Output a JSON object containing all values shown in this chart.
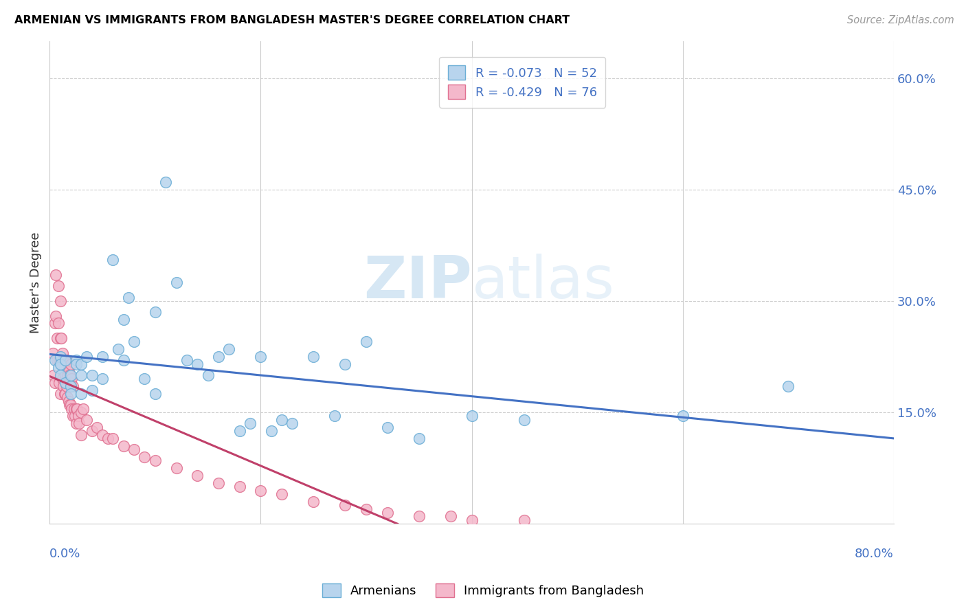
{
  "title": "ARMENIAN VS IMMIGRANTS FROM BANGLADESH MASTER'S DEGREE CORRELATION CHART",
  "source": "Source: ZipAtlas.com",
  "ylabel": "Master's Degree",
  "right_yticks": [
    "15.0%",
    "30.0%",
    "45.0%",
    "60.0%"
  ],
  "right_ytick_vals": [
    0.15,
    0.3,
    0.45,
    0.6
  ],
  "xlim": [
    0.0,
    0.8
  ],
  "ylim": [
    0.0,
    0.65
  ],
  "color_armenian_fill": "#b8d4ed",
  "color_armenian_edge": "#6baed6",
  "color_bangladesh_fill": "#f4b8cb",
  "color_bangladesh_edge": "#e07090",
  "color_line_armenian": "#4472c4",
  "color_line_bangladesh": "#c0406a",
  "color_text_blue": "#4472c4",
  "color_grid": "#cccccc",
  "watermark_color": "#cce0f0",
  "legend_labels": [
    "Armenians",
    "Immigrants from Bangladesh"
  ],
  "armenian_x": [
    0.005,
    0.008,
    0.01,
    0.01,
    0.01,
    0.015,
    0.015,
    0.02,
    0.02,
    0.02,
    0.025,
    0.025,
    0.03,
    0.03,
    0.03,
    0.035,
    0.04,
    0.04,
    0.05,
    0.05,
    0.06,
    0.065,
    0.07,
    0.07,
    0.075,
    0.08,
    0.09,
    0.1,
    0.1,
    0.11,
    0.12,
    0.13,
    0.14,
    0.15,
    0.16,
    0.17,
    0.18,
    0.19,
    0.2,
    0.21,
    0.22,
    0.23,
    0.25,
    0.27,
    0.28,
    0.3,
    0.32,
    0.35,
    0.4,
    0.45,
    0.6,
    0.7
  ],
  "armenian_y": [
    0.22,
    0.21,
    0.225,
    0.215,
    0.2,
    0.22,
    0.19,
    0.2,
    0.185,
    0.175,
    0.22,
    0.215,
    0.215,
    0.2,
    0.175,
    0.225,
    0.2,
    0.18,
    0.225,
    0.195,
    0.355,
    0.235,
    0.275,
    0.22,
    0.305,
    0.245,
    0.195,
    0.285,
    0.175,
    0.46,
    0.325,
    0.22,
    0.215,
    0.2,
    0.225,
    0.235,
    0.125,
    0.135,
    0.225,
    0.125,
    0.14,
    0.135,
    0.225,
    0.145,
    0.215,
    0.245,
    0.13,
    0.115,
    0.145,
    0.14,
    0.145,
    0.185
  ],
  "bangladesh_x": [
    0.003,
    0.004,
    0.005,
    0.005,
    0.006,
    0.006,
    0.007,
    0.007,
    0.008,
    0.008,
    0.009,
    0.009,
    0.01,
    0.01,
    0.01,
    0.01,
    0.011,
    0.011,
    0.012,
    0.012,
    0.013,
    0.013,
    0.014,
    0.014,
    0.015,
    0.015,
    0.015,
    0.016,
    0.016,
    0.017,
    0.017,
    0.018,
    0.018,
    0.019,
    0.019,
    0.02,
    0.02,
    0.02,
    0.021,
    0.021,
    0.022,
    0.022,
    0.023,
    0.024,
    0.025,
    0.025,
    0.026,
    0.027,
    0.028,
    0.03,
    0.03,
    0.032,
    0.035,
    0.04,
    0.045,
    0.05,
    0.055,
    0.06,
    0.07,
    0.08,
    0.09,
    0.1,
    0.12,
    0.14,
    0.16,
    0.18,
    0.2,
    0.22,
    0.25,
    0.28,
    0.3,
    0.32,
    0.35,
    0.38,
    0.4,
    0.45
  ],
  "bangladesh_y": [
    0.23,
    0.2,
    0.27,
    0.19,
    0.335,
    0.28,
    0.25,
    0.22,
    0.32,
    0.27,
    0.22,
    0.19,
    0.3,
    0.25,
    0.22,
    0.175,
    0.25,
    0.215,
    0.23,
    0.195,
    0.22,
    0.185,
    0.21,
    0.175,
    0.22,
    0.2,
    0.175,
    0.22,
    0.185,
    0.2,
    0.17,
    0.205,
    0.165,
    0.2,
    0.16,
    0.215,
    0.19,
    0.16,
    0.195,
    0.155,
    0.185,
    0.145,
    0.155,
    0.145,
    0.155,
    0.135,
    0.155,
    0.145,
    0.135,
    0.15,
    0.12,
    0.155,
    0.14,
    0.125,
    0.13,
    0.12,
    0.115,
    0.115,
    0.105,
    0.1,
    0.09,
    0.085,
    0.075,
    0.065,
    0.055,
    0.05,
    0.045,
    0.04,
    0.03,
    0.025,
    0.02,
    0.015,
    0.01,
    0.01,
    0.005,
    0.005
  ]
}
